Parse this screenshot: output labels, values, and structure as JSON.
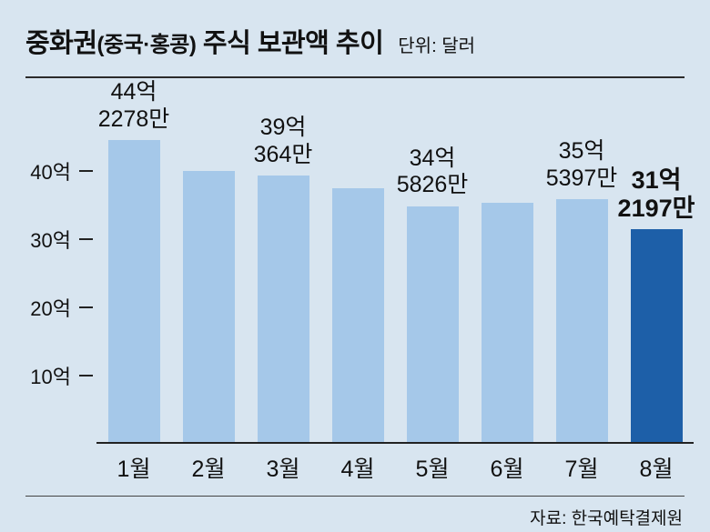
{
  "header": {
    "title_part1": "중화권",
    "title_part2": "(중국·홍콩)",
    "title_part3": " 주식 보관액 추이",
    "unit": "단위: 달러"
  },
  "footer": {
    "source": "자료: 한국예탁결제원"
  },
  "colors": {
    "background": "#d8e5f0",
    "bar": "#a5c8e9",
    "highlight": "#1d5fa8",
    "line": "#222222",
    "text": "#111111"
  },
  "chart_data": {
    "type": "bar",
    "title": "중화권(중국·홍콩) 주식 보관액 추이",
    "unit_label": "단위: 달러",
    "source": "자료: 한국예탁결제원",
    "xlabel": "",
    "ylabel": "",
    "categories": [
      "1월",
      "2월",
      "3월",
      "4월",
      "5월",
      "6월",
      "7월",
      "8월"
    ],
    "values": [
      44.2278,
      39.8,
      39.0364,
      37.2,
      34.5826,
      35.1,
      35.5397,
      31.2197
    ],
    "value_label_lines": [
      [
        "44억",
        "2278만"
      ],
      null,
      [
        "39억",
        "364만"
      ],
      null,
      [
        "34억",
        "5826만"
      ],
      null,
      [
        "35억",
        "5397만"
      ],
      [
        "31억",
        "2197만"
      ]
    ],
    "highlight_index": 7,
    "yticks": [
      10,
      20,
      30,
      40
    ],
    "ytick_labels": [
      "10억",
      "20억",
      "30억",
      "40억"
    ],
    "ylim": [
      0,
      52
    ],
    "grid": false,
    "legend": false,
    "bar_color": "#a5c8e9",
    "highlight_color": "#1d5fa8",
    "background": "#d8e5f0"
  }
}
